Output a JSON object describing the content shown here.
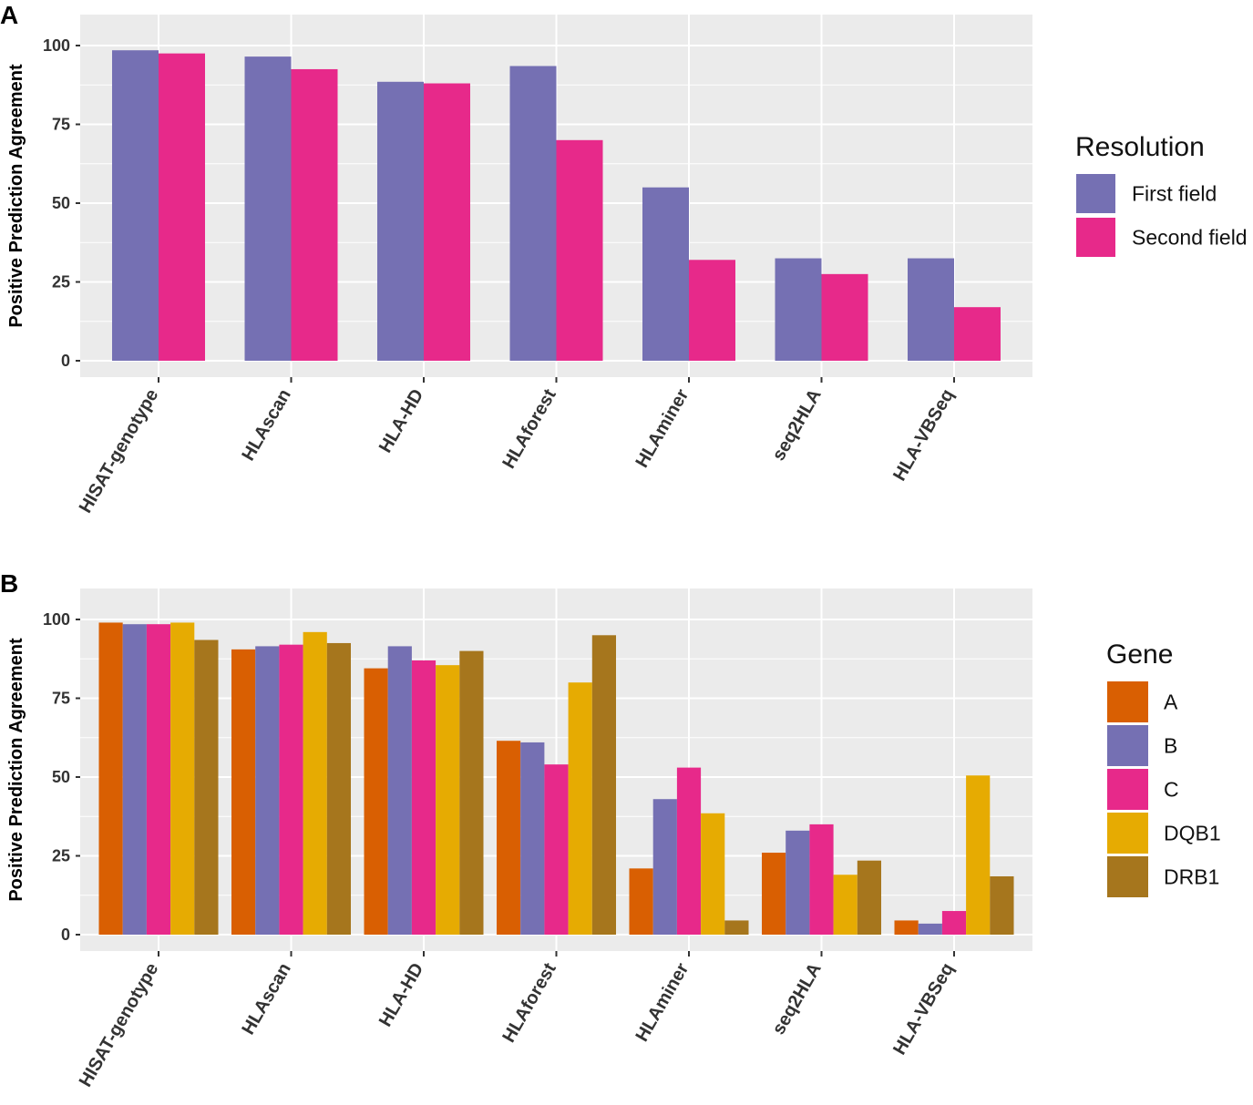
{
  "chart_data": [
    {
      "type": "bar",
      "panel": "A",
      "categories": [
        "HISAT-genotype",
        "HLAscan",
        "HLA-HD",
        "HLAforest",
        "HLAminer",
        "seq2HLA",
        "HLA-VBSeq"
      ],
      "series": [
        {
          "name": "First field",
          "color": "#7570b3",
          "values": [
            98.5,
            96.5,
            88.5,
            93.5,
            55,
            32.5,
            32.5
          ]
        },
        {
          "name": "Second field",
          "color": "#e7298a",
          "values": [
            97.5,
            92.5,
            88,
            70,
            32,
            27.5,
            17
          ]
        }
      ],
      "ylabel": "Positive Prediction Agreement",
      "xlabel": "",
      "ylim": [
        -5,
        110
      ],
      "yticks": [
        "0",
        "25",
        "50",
        "75",
        "100"
      ],
      "legend_title": "Resolution",
      "legend_position": "right"
    },
    {
      "type": "bar",
      "panel": "B",
      "categories": [
        "HISAT-genotype",
        "HLAscan",
        "HLA-HD",
        "HLAforest",
        "HLAminer",
        "seq2HLA",
        "HLA-VBSeq"
      ],
      "series": [
        {
          "name": "A",
          "color": "#d95f02",
          "values": [
            99,
            90.5,
            84.5,
            61.5,
            21,
            26,
            4.5
          ]
        },
        {
          "name": "B",
          "color": "#7570b3",
          "values": [
            98.5,
            91.5,
            91.5,
            61,
            43,
            33,
            3.5
          ]
        },
        {
          "name": "C",
          "color": "#e7298a",
          "values": [
            98.5,
            92,
            87,
            54,
            53,
            35,
            7.5
          ]
        },
        {
          "name": "DQB1",
          "color": "#e6ab02",
          "values": [
            99,
            96,
            85.5,
            80,
            38.5,
            19,
            50.5
          ]
        },
        {
          "name": "DRB1",
          "color": "#a6761d",
          "values": [
            93.5,
            92.5,
            90,
            95,
            4.5,
            23.5,
            18.5
          ]
        }
      ],
      "ylabel": "Positive Prediction Agreement",
      "xlabel": "",
      "ylim": [
        -5,
        110
      ],
      "yticks": [
        "0",
        "25",
        "50",
        "75",
        "100"
      ],
      "legend_title": "Gene",
      "legend_position": "right"
    }
  ]
}
